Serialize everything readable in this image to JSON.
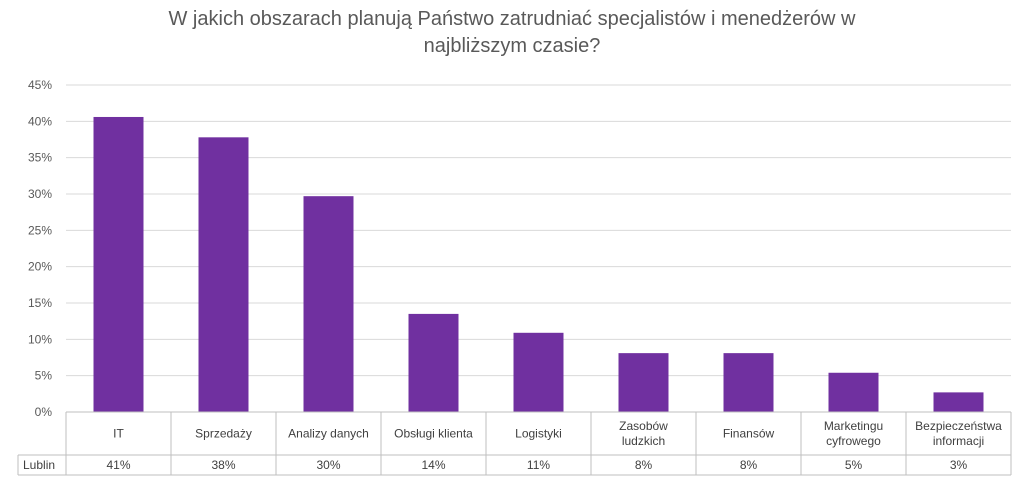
{
  "title_line1": "W jakich obszarach planują Państwo zatrudniać specjalistów i menedżerów w",
  "title_line2": "najbliższym czasie?",
  "chart_data": {
    "type": "bar",
    "title": "W jakich obszarach planują Państwo zatrudniać specjalistów i menedżerów w najbliższym czasie?",
    "categories": [
      [
        "IT"
      ],
      [
        "Sprzedaży"
      ],
      [
        "Analizy danych"
      ],
      [
        "Obsługi klienta"
      ],
      [
        "Logistyki"
      ],
      [
        "Zasobów",
        "ludzkich"
      ],
      [
        "Finansów"
      ],
      [
        "Marketingu",
        "cyfrowego"
      ],
      [
        "Bezpieczeństwa",
        "informacji"
      ]
    ],
    "series": [
      {
        "name": "Lublin",
        "values": [
          40.6,
          37.8,
          29.7,
          13.5,
          10.9,
          8.1,
          8.1,
          5.4,
          2.7
        ],
        "labels": [
          "41%",
          "38%",
          "30%",
          "14%",
          "11%",
          "8%",
          "8%",
          "5%",
          "3%"
        ],
        "color": "#7030A0"
      }
    ],
    "y_ticks": [
      "0%",
      "5%",
      "10%",
      "15%",
      "20%",
      "25%",
      "30%",
      "35%",
      "40%",
      "45%"
    ],
    "ylim": [
      0,
      45
    ],
    "grid": true,
    "legend": "data-table"
  }
}
